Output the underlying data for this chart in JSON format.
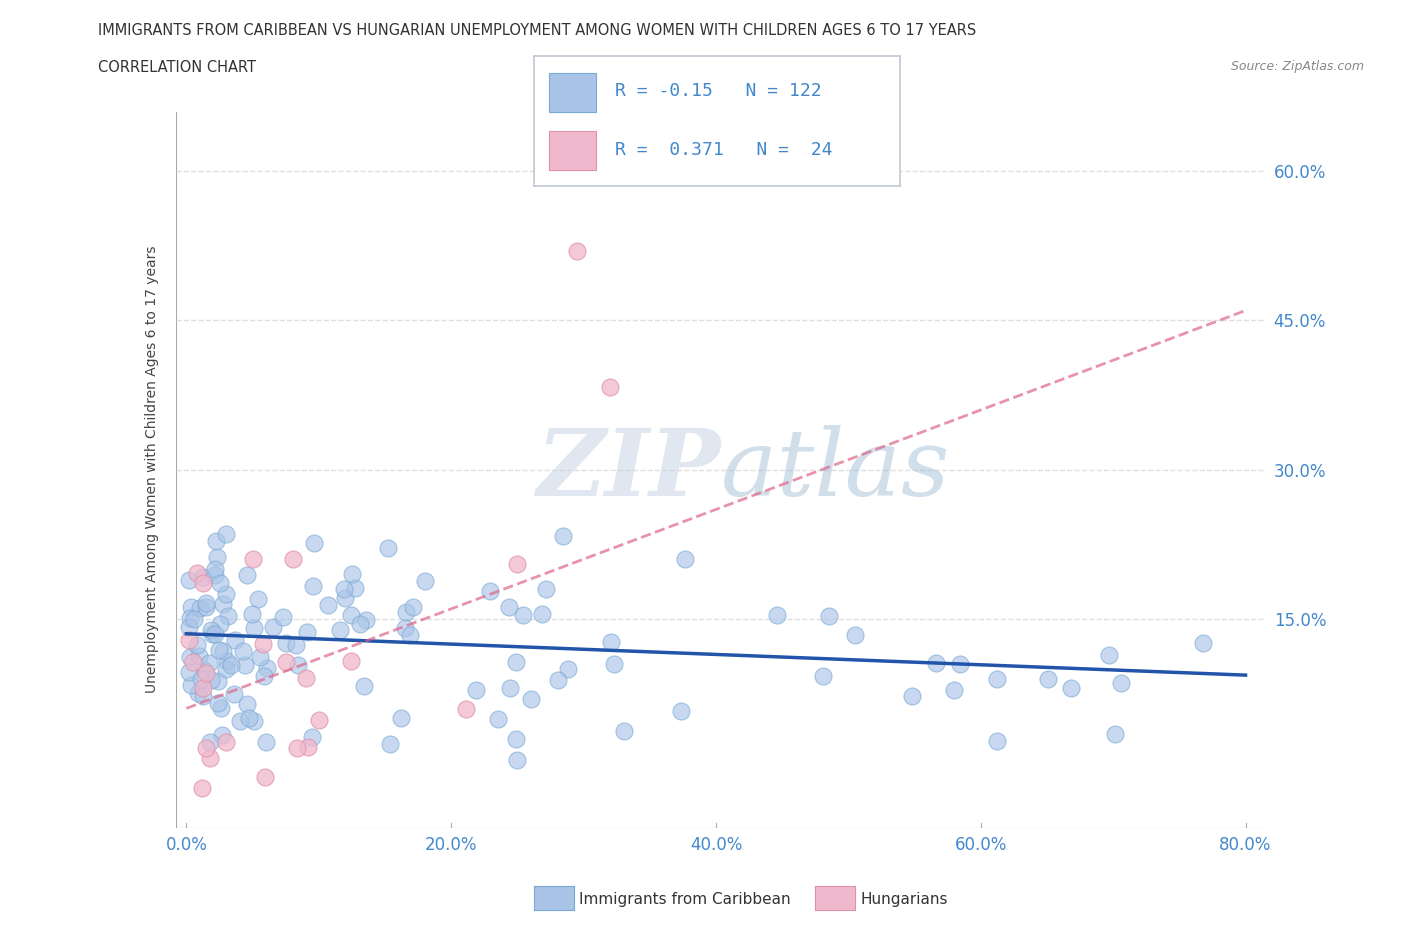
{
  "title": "IMMIGRANTS FROM CARIBBEAN VS HUNGARIAN UNEMPLOYMENT AMONG WOMEN WITH CHILDREN AGES 6 TO 17 YEARS",
  "subtitle": "CORRELATION CHART",
  "source": "Source: ZipAtlas.com",
  "ylabel_label": "Unemployment Among Women with Children Ages 6 to 17 years",
  "xmin": 0.0,
  "xmax": 0.8,
  "ymin": -0.06,
  "ymax": 0.66,
  "caribbean_color": "#aac4e8",
  "caribbean_edge": "#7aaad4",
  "hungarian_color": "#f0b8cc",
  "hungarian_edge": "#e090a8",
  "carib_line_color": "#2255aa",
  "hung_line_color": "#dd6688",
  "caribbean_R": -0.15,
  "caribbean_N": 122,
  "hungarian_R": 0.371,
  "hungarian_N": 24,
  "watermark_color": "#c8d4e4",
  "grid_color": "#d8d8d8",
  "tick_color": "#4488cc",
  "legend_box_color": "#e8eef4",
  "text_color": "#333333",
  "source_color": "#888888"
}
